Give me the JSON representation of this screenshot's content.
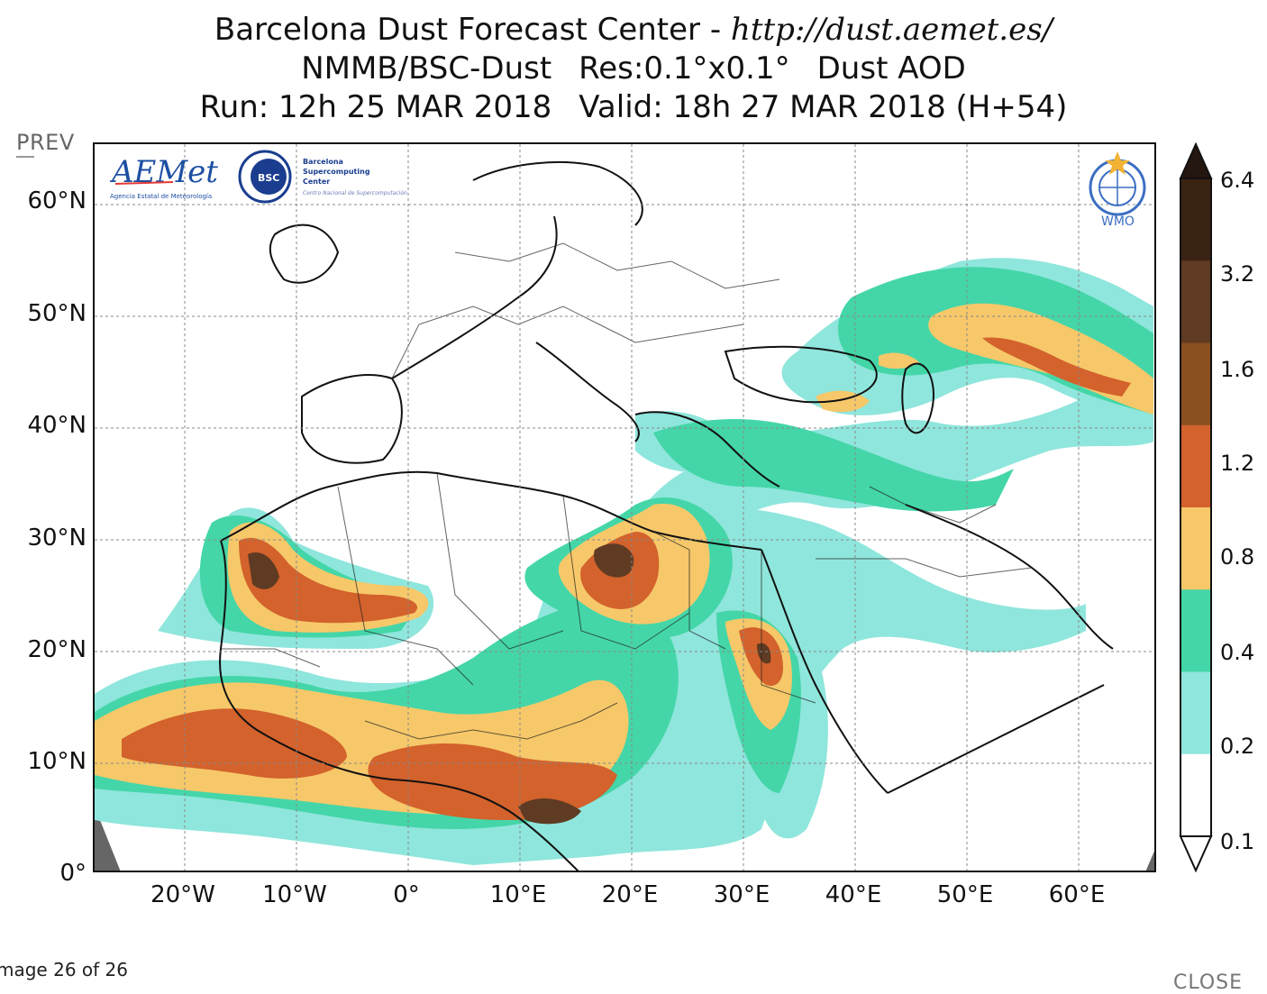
{
  "header": {
    "title_prefix": "Barcelona Dust Forecast Center - ",
    "title_url": "http://dust.aemet.es/",
    "model": "NMMB/BSC-Dust",
    "resolution": "Res:0.1°x0.1°",
    "variable": "Dust AOD",
    "run": "Run: 12h 25 MAR 2018",
    "valid": "Valid: 18h 27 MAR 2018 (H+54)"
  },
  "nav": {
    "prev_label": "PREV",
    "close_label": "CLOSE",
    "image_counter": "mage 26 of 26"
  },
  "logos": {
    "aemet_text": "AEMet",
    "aemet_subtext": "Agencia Estatal de Meteorología",
    "bsc_badge": "BSC",
    "bsc_line1": "Barcelona",
    "bsc_line2": "Supercomputing",
    "bsc_line3": "Center",
    "bsc_line4": "Centro Nacional de Supercomputación",
    "wmo_text": "WMO"
  },
  "map": {
    "lat_labels": [
      "60°N",
      "50°N",
      "40°N",
      "30°N",
      "20°N",
      "10°N",
      "0°"
    ],
    "lon_labels": [
      "20°W",
      "10°W",
      "0°",
      "10°E",
      "20°E",
      "30°E",
      "40°E",
      "50°E",
      "60°E"
    ],
    "lat_values": [
      60,
      50,
      40,
      30,
      20,
      10,
      0
    ],
    "lon_values": [
      -20,
      -10,
      0,
      10,
      20,
      30,
      40,
      50,
      60
    ],
    "lat_range": [
      0,
      65
    ],
    "lon_range": [
      -28,
      67
    ]
  },
  "colorbar": {
    "labels": [
      "6.4",
      "3.2",
      "1.6",
      "1.2",
      "0.8",
      "0.4",
      "0.2",
      "0.1"
    ],
    "colors": [
      "#3b2314",
      "#5e3b22",
      "#8a5020",
      "#d3622c",
      "#f6c86a",
      "#44d6a8",
      "#8fe6dc",
      "#ffffff"
    ],
    "top_color": "#24170f"
  },
  "colors": {
    "c01": "#8fe6dc",
    "c02": "#44d6a8",
    "c04": "#f6c86a",
    "c08": "#d3622c",
    "c12": "#8a5020",
    "c16": "#5e3b22"
  }
}
